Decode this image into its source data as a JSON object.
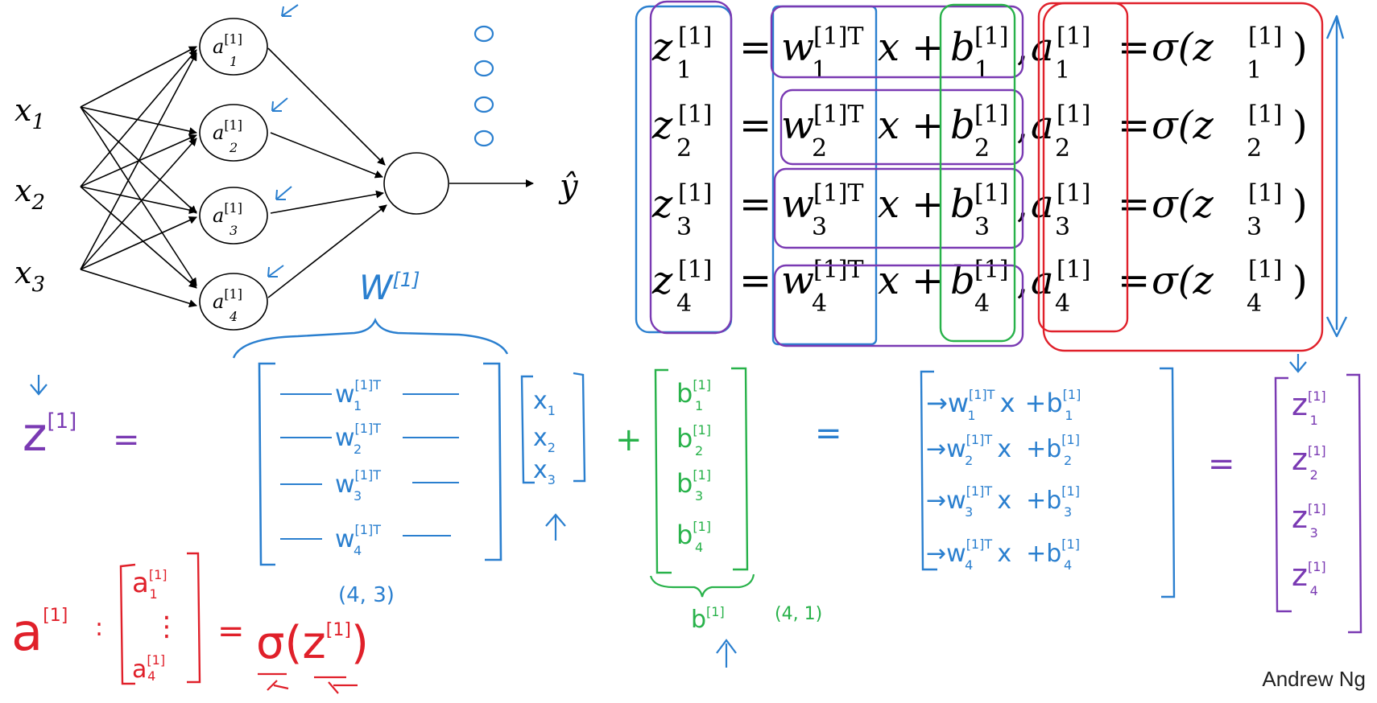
{
  "credit": "Andrew Ng",
  "colors": {
    "ink": "#000000",
    "blue": "#2a7fcf",
    "purple": "#7a3ab3",
    "green": "#28b24a",
    "red": "#e0202a"
  },
  "network": {
    "inputs": [
      "x",
      "x",
      "x"
    ],
    "input_subs": [
      "1",
      "2",
      "3"
    ],
    "hidden": [
      {
        "base": "a",
        "sup": "[1]",
        "sub": "1"
      },
      {
        "base": "a",
        "sup": "[1]",
        "sub": "2"
      },
      {
        "base": "a",
        "sup": "[1]",
        "sub": "3"
      },
      {
        "base": "a",
        "sup": "[1]",
        "sub": "4"
      }
    ],
    "output": "ŷ"
  },
  "equations": [
    {
      "z": "z",
      "zsup": "[1]",
      "zsub": "1",
      "w": "w",
      "wsup": "[1]T",
      "wsub": "1",
      "x": "x",
      "b": "b",
      "bsup": "[1]",
      "bsub": "1",
      "a": "a",
      "asup": "[1]",
      "asub": "1",
      "sigma": "σ(z",
      "ssup": "[1]",
      "ssub": "1"
    },
    {
      "z": "z",
      "zsup": "[1]",
      "zsub": "2",
      "w": "w",
      "wsup": "[1]T",
      "wsub": "2",
      "x": "x",
      "b": "b",
      "bsup": "[1]",
      "bsub": "2",
      "a": "a",
      "asup": "[1]",
      "asub": "2",
      "sigma": "σ(z",
      "ssup": "[1]",
      "ssub": "2"
    },
    {
      "z": "z",
      "zsup": "[1]",
      "zsub": "3",
      "w": "w",
      "wsup": "[1]T",
      "wsub": "3",
      "x": "x",
      "b": "b",
      "bsup": "[1]",
      "bsub": "3",
      "a": "a",
      "asup": "[1]",
      "asub": "3",
      "sigma": "σ(z",
      "ssup": "[1]",
      "ssub": "3"
    },
    {
      "z": "z",
      "zsup": "[1]",
      "zsub": "4",
      "w": "w",
      "wsup": "[1]T",
      "wsub": "4",
      "x": "x",
      "b": "b",
      "bsup": "[1]",
      "bsub": "4",
      "a": "a",
      "asup": "[1]",
      "asub": "4",
      "sigma": "σ(z",
      "ssup": "[1]",
      "ssub": "4"
    }
  ],
  "handwritten": {
    "W_label": "W",
    "W_sup": "[1]",
    "z_lhs": "z",
    "z_lhs_sup": "[1]",
    "eq": "=",
    "W_rows": [
      {
        "w": "w",
        "sup": "[1]T",
        "sub": "1"
      },
      {
        "w": "w",
        "sup": "[1]T",
        "sub": "2"
      },
      {
        "w": "w",
        "sup": "[1]T",
        "sub": "3"
      },
      {
        "w": "w",
        "sup": "[1]T",
        "sub": "4"
      }
    ],
    "W_shape": "(4, 3)",
    "x_vec": [
      {
        "x": "x",
        "sub": "1"
      },
      {
        "x": "x",
        "sub": "2"
      },
      {
        "x": "x",
        "sub": "3"
      }
    ],
    "plus": "+",
    "b_vec": [
      {
        "b": "b",
        "sup": "[1]",
        "sub": "1"
      },
      {
        "b": "b",
        "sup": "[1]",
        "sub": "2"
      },
      {
        "b": "b",
        "sup": "[1]",
        "sub": "3"
      },
      {
        "b": "b",
        "sup": "[1]",
        "sub": "4"
      }
    ],
    "b_label": "b",
    "b_label_sup": "[1]",
    "b_shape": "(4, 1)",
    "result_rows": [
      {
        "w": "w",
        "wsup": "[1]T",
        "wsub": "1",
        "x": "x",
        "b": "b",
        "bsup": "[1]",
        "bsub": "1"
      },
      {
        "w": "w",
        "wsup": "[1]T",
        "wsub": "2",
        "x": "x",
        "b": "b",
        "bsup": "[1]",
        "bsub": "2"
      },
      {
        "w": "w",
        "wsup": "[1]T",
        "wsub": "3",
        "x": "x",
        "b": "b",
        "bsup": "[1]",
        "bsub": "3"
      },
      {
        "w": "w",
        "wsup": "[1]T",
        "wsub": "4",
        "x": "x",
        "b": "b",
        "bsup": "[1]",
        "bsub": "4"
      }
    ],
    "z_vec": [
      {
        "z": "z",
        "sup": "[1]",
        "sub": "1"
      },
      {
        "z": "z",
        "sup": "[1]",
        "sub": "2"
      },
      {
        "z": "z",
        "sup": "[1]",
        "sub": "3"
      },
      {
        "z": "z",
        "sup": "[1]",
        "sub": "4"
      }
    ],
    "a_lhs": "a",
    "a_lhs_sup": "[1]",
    "a_vec_top": {
      "a": "a",
      "sup": "[1]",
      "sub": "1"
    },
    "a_vec_dots": "⋮",
    "a_vec_bot": {
      "a": "a",
      "sup": "[1]",
      "sub": "4"
    },
    "sigma_expr": "σ",
    "sigma_arg": "z",
    "sigma_arg_sup": "[1]",
    "plus_sign": "+"
  }
}
